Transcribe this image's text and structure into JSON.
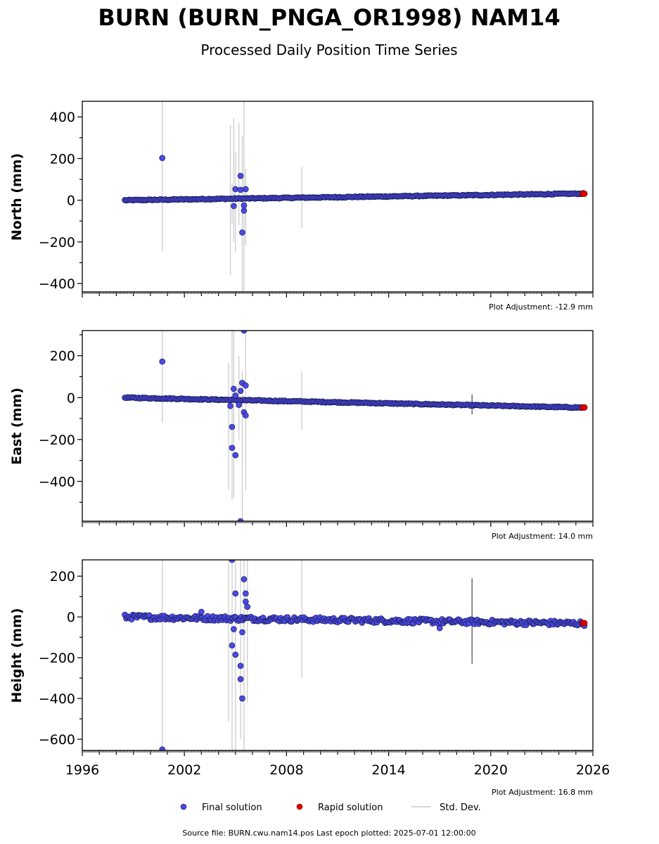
{
  "header": {
    "title": "BURN (BURN_PNGA_OR1998) NAM14",
    "subtitle": "Processed Daily Position Time Series"
  },
  "colors": {
    "final": "#4a4ae8",
    "final_edge": "#101030",
    "rapid": "#e00000",
    "std_dev": "#cccccc",
    "std_dev_dark": "#555555"
  },
  "legend": {
    "final": "Final solution",
    "rapid": "Rapid solution",
    "std": "Std. Dev."
  },
  "footer": {
    "source": "Source file: BURN.cwu.nam14.pos  Last epoch plotted: 2025-07-01 12:00:00"
  },
  "chart_data": [
    {
      "type": "scatter",
      "ylabel": "North (mm)",
      "adjustment": "Plot Adjustment: -12.9 mm",
      "xlim": [
        1996,
        2026
      ],
      "ylim": [
        -440,
        475
      ],
      "yticks": [
        -400,
        -200,
        0,
        200,
        400
      ],
      "xticks": [
        1996,
        2002,
        2008,
        2014,
        2020,
        2026
      ],
      "trend": {
        "x_start": 1998.5,
        "y_start": 0,
        "x_end": 2025.5,
        "y_end": 32,
        "scatter": 2.5
      },
      "outliers": [
        [
          2000.7,
          203
        ],
        [
          2004.9,
          -28
        ],
        [
          2005.0,
          53
        ],
        [
          2005.3,
          117
        ],
        [
          2005.3,
          50
        ],
        [
          2005.4,
          -155
        ],
        [
          2005.5,
          -50
        ],
        [
          2005.5,
          -25
        ],
        [
          2005.6,
          53
        ]
      ],
      "std_dev_bars": [
        [
          2000.7,
          -245,
          475
        ],
        [
          2004.7,
          -360,
          360
        ],
        [
          2004.8,
          -110,
          80
        ],
        [
          2004.9,
          -200,
          395
        ],
        [
          2005.0,
          -250,
          235
        ],
        [
          2005.2,
          -120,
          370
        ],
        [
          2005.4,
          -440,
          310
        ],
        [
          2005.5,
          -440,
          475
        ],
        [
          2005.6,
          -215,
          150
        ],
        [
          2008.9,
          -135,
          160
        ]
      ],
      "dark_bars": [],
      "rapid": [
        [
          2025.4,
          31
        ],
        [
          2025.5,
          31
        ]
      ]
    },
    {
      "type": "scatter",
      "ylabel": "East (mm)",
      "adjustment": "Plot Adjustment: 14.0 mm",
      "xlim": [
        1996,
        2026
      ],
      "ylim": [
        -590,
        320
      ],
      "yticks": [
        -400,
        -200,
        0,
        200
      ],
      "xticks": [
        1996,
        2002,
        2008,
        2014,
        2020,
        2026
      ],
      "trend": {
        "x_start": 1998.5,
        "y_start": 0,
        "x_end": 2025.5,
        "y_end": -48,
        "scatter": 2.5
      },
      "outliers": [
        [
          2000.7,
          172
        ],
        [
          2004.7,
          -40
        ],
        [
          2004.8,
          -240
        ],
        [
          2004.8,
          -140
        ],
        [
          2004.9,
          42
        ],
        [
          2005.0,
          10
        ],
        [
          2005.0,
          -275
        ],
        [
          2005.2,
          -35
        ],
        [
          2005.3,
          32
        ],
        [
          2005.3,
          -590
        ],
        [
          2005.4,
          70
        ],
        [
          2005.5,
          320
        ],
        [
          2005.5,
          -70
        ],
        [
          2005.6,
          58
        ],
        [
          2005.6,
          -85
        ]
      ],
      "std_dev_bars": [
        [
          2000.7,
          -120,
          320
        ],
        [
          2004.6,
          -440,
          165
        ],
        [
          2004.8,
          -490,
          320
        ],
        [
          2004.9,
          -480,
          320
        ],
        [
          2005.2,
          -200,
          200
        ],
        [
          2005.4,
          -590,
          125
        ],
        [
          2005.6,
          -440,
          320
        ],
        [
          2008.9,
          -155,
          125
        ]
      ],
      "dark_bars": [
        [
          2018.9,
          -80,
          15
        ]
      ],
      "rapid": [
        [
          2025.4,
          -47
        ],
        [
          2025.5,
          -47
        ]
      ]
    },
    {
      "type": "scatter",
      "ylabel": "Height (mm)",
      "adjustment": "Plot Adjustment: 16.8 mm",
      "xlim": [
        1996,
        2026
      ],
      "ylim": [
        -655,
        280
      ],
      "yticks": [
        -600,
        -400,
        -200,
        0,
        200
      ],
      "xticks": [
        1996,
        2002,
        2008,
        2014,
        2020,
        2026
      ],
      "trend": {
        "x_start": 1998.5,
        "y_start": 0,
        "x_end": 2025.5,
        "y_end": -32,
        "scatter": 12
      },
      "outliers": [
        [
          2000.7,
          -650
        ],
        [
          2003.0,
          25
        ],
        [
          2004.8,
          -140
        ],
        [
          2004.8,
          280
        ],
        [
          2004.9,
          -60
        ],
        [
          2005.0,
          -185
        ],
        [
          2005.0,
          115
        ],
        [
          2005.3,
          -240
        ],
        [
          2005.3,
          -305
        ],
        [
          2005.4,
          -75
        ],
        [
          2005.4,
          -400
        ],
        [
          2005.5,
          185
        ],
        [
          2005.6,
          115
        ],
        [
          2005.6,
          75
        ],
        [
          2005.7,
          50
        ],
        [
          2017.0,
          -55
        ]
      ],
      "std_dev_bars": [
        [
          2000.7,
          -655,
          280
        ],
        [
          2004.6,
          -510,
          280
        ],
        [
          2004.8,
          -655,
          280
        ],
        [
          2005.0,
          -655,
          280
        ],
        [
          2005.3,
          -600,
          280
        ],
        [
          2005.5,
          -655,
          280
        ],
        [
          2005.7,
          -420,
          280
        ],
        [
          2008.9,
          -300,
          280
        ]
      ],
      "dark_bars": [
        [
          2018.9,
          -230,
          190
        ]
      ],
      "rapid": [
        [
          2025.4,
          -30
        ],
        [
          2025.5,
          -30
        ]
      ]
    }
  ]
}
